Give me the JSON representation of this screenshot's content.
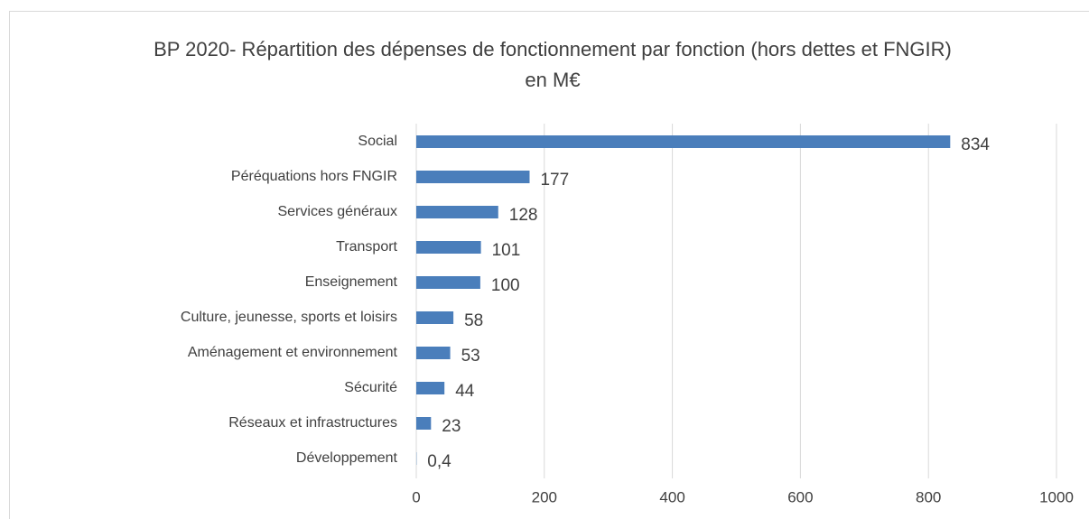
{
  "chart_data": {
    "type": "bar",
    "orientation": "horizontal",
    "title": "BP 2020- Répartition des dépenses de fonctionnement par fonction (hors dettes et FNGIR) en M€",
    "categories": [
      "Social",
      "Péréquations hors FNGIR",
      "Services généraux",
      "Transport",
      "Enseignement",
      "Culture, jeunesse, sports et loisirs",
      "Aménagement et environnement",
      "Sécurité",
      "Réseaux et infrastructures",
      "Développement"
    ],
    "values": [
      834,
      177,
      128,
      101,
      100,
      58,
      53,
      44,
      23,
      0.4
    ],
    "value_labels": [
      "834",
      "177",
      "128",
      "101",
      "100",
      "58",
      "53",
      "44",
      "23",
      "0,4"
    ],
    "color": "#4a7ebb",
    "xlim": [
      0,
      1000
    ],
    "xticks": [
      0,
      200,
      400,
      600,
      800,
      1000
    ],
    "grid": true
  }
}
